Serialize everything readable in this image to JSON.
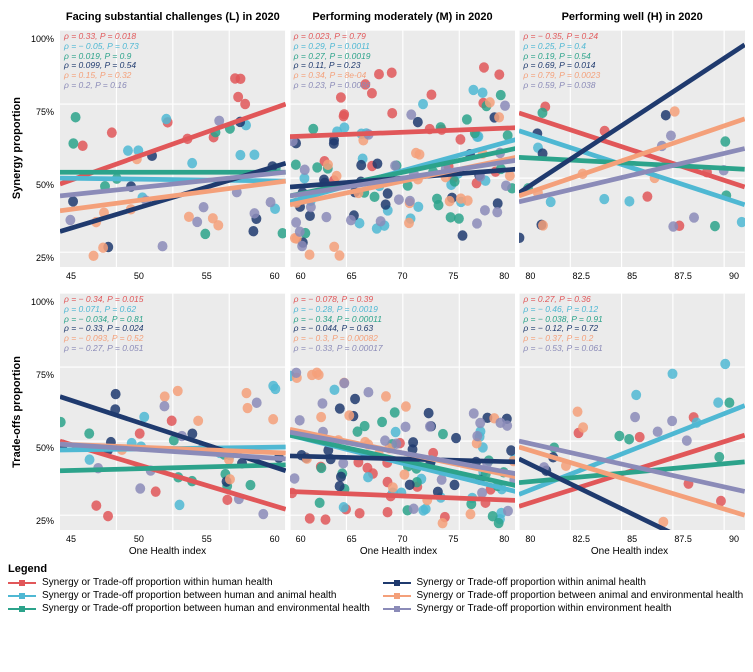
{
  "columns": [
    {
      "title": "Facing substantial challenges (L) in 2020",
      "xlim": [
        40,
        60
      ],
      "xticks": [
        45,
        50,
        55,
        60
      ]
    },
    {
      "title": "Performing moderately (M) in 2020",
      "xlim": [
        60,
        80
      ],
      "xticks": [
        60,
        65,
        70,
        75,
        80
      ]
    },
    {
      "title": "Performing well (H) in 2020",
      "xlim": [
        80,
        91
      ],
      "xticks": [
        80,
        82.5,
        85,
        87.5,
        90
      ]
    }
  ],
  "rows": [
    {
      "title": "Synergy proportion",
      "ylim": [
        20,
        100
      ],
      "yticks": [
        25,
        50,
        75,
        100
      ]
    },
    {
      "title": "Trade-offs proportion",
      "ylim": [
        20,
        100
      ],
      "yticks": [
        25,
        50,
        75,
        100
      ]
    }
  ],
  "xlabel": "One Health index",
  "series": [
    {
      "id": "hh",
      "color": "#e15759",
      "label": "Synergy or Trade-off proportion within human health"
    },
    {
      "id": "ha",
      "color": "#4fb8d3",
      "label": "Synergy or Trade-off  proportion between human and animal health"
    },
    {
      "id": "he",
      "color": "#2ca38b",
      "label": "Synergy or Trade-off  proportion between human and environmental health"
    },
    {
      "id": "aa",
      "color": "#1f3a6e",
      "label": "Synergy or Trade-off  proportion within animal health"
    },
    {
      "id": "ae",
      "color": "#f4a07a",
      "label": "Synergy or Trade-off  proportion between animal and environmental health"
    },
    {
      "id": "ee",
      "color": "#8b8bb8",
      "label": "Synergy or Trade-off  proportion within environment health"
    }
  ],
  "panels": [
    {
      "row": 0,
      "col": 0,
      "stats": [
        {
          "s": "hh",
          "text": "ρ = 0.33, P = 0.018"
        },
        {
          "s": "ha",
          "text": "ρ = − 0.05, P = 0.73"
        },
        {
          "s": "he",
          "text": "ρ = 0.019, P = 0.9"
        },
        {
          "s": "aa",
          "text": "ρ = 0.099, P = 0.54"
        },
        {
          "s": "ae",
          "text": "ρ = 0.15, P = 0.32"
        },
        {
          "s": "ee",
          "text": "ρ = 0.2, P = 0.16"
        }
      ],
      "lines": {
        "hh": [
          [
            40,
            48
          ],
          [
            60,
            75
          ]
        ],
        "ha": [
          [
            40,
            50
          ],
          [
            60,
            49
          ]
        ],
        "he": [
          [
            40,
            52
          ],
          [
            60,
            52
          ]
        ],
        "aa": [
          [
            40,
            32
          ],
          [
            60,
            55
          ]
        ],
        "ae": [
          [
            40,
            39
          ],
          [
            60,
            49
          ]
        ],
        "ee": [
          [
            40,
            44
          ],
          [
            60,
            52
          ]
        ]
      },
      "n": 38
    },
    {
      "row": 0,
      "col": 1,
      "stats": [
        {
          "s": "hh",
          "text": "ρ = 0.023, P = 0.79"
        },
        {
          "s": "ha",
          "text": "ρ = 0.29, P = 0.0011"
        },
        {
          "s": "he",
          "text": "ρ = 0.27, P = 0.0019"
        },
        {
          "s": "aa",
          "text": "ρ = 0.11, P = 0.23"
        },
        {
          "s": "ae",
          "text": "ρ = 0.34, P = 8e-04"
        },
        {
          "s": "ee",
          "text": "ρ = 0.23, P = 0.0086"
        }
      ],
      "lines": {
        "hh": [
          [
            60,
            64
          ],
          [
            80,
            67
          ]
        ],
        "ha": [
          [
            60,
            42
          ],
          [
            80,
            63
          ]
        ],
        "he": [
          [
            60,
            44
          ],
          [
            80,
            60
          ]
        ],
        "aa": [
          [
            60,
            47
          ],
          [
            80,
            53
          ]
        ],
        "ae": [
          [
            60,
            41
          ],
          [
            80,
            57
          ]
        ],
        "ee": [
          [
            60,
            44
          ],
          [
            80,
            56
          ]
        ]
      },
      "n": 90
    },
    {
      "row": 0,
      "col": 2,
      "stats": [
        {
          "s": "hh",
          "text": "ρ = − 0.35, P = 0.24"
        },
        {
          "s": "ha",
          "text": "ρ = 0.25, P = 0.4"
        },
        {
          "s": "he",
          "text": "ρ = 0.19, P = 0.54"
        },
        {
          "s": "aa",
          "text": "ρ = 0.69, P = 0.014"
        },
        {
          "s": "ae",
          "text": "ρ = 0.79, P = 0.0023"
        },
        {
          "s": "ee",
          "text": "ρ = 0.59, P = 0.038"
        }
      ],
      "lines": {
        "hh": [
          [
            80,
            72
          ],
          [
            91,
            47
          ]
        ],
        "ha": [
          [
            80,
            66
          ],
          [
            91,
            41
          ]
        ],
        "he": [
          [
            80,
            57
          ],
          [
            91,
            53
          ]
        ],
        "aa": [
          [
            80,
            45
          ],
          [
            91,
            95
          ]
        ],
        "ae": [
          [
            80,
            44
          ],
          [
            91,
            70
          ]
        ],
        "ee": [
          [
            80,
            42
          ],
          [
            91,
            60
          ]
        ]
      },
      "n": 13
    },
    {
      "row": 1,
      "col": 0,
      "stats": [
        {
          "s": "hh",
          "text": "ρ = − 0.34, P = 0.015"
        },
        {
          "s": "ha",
          "text": "ρ = 0.071, P = 0.62"
        },
        {
          "s": "he",
          "text": "ρ = − 0.034, P = 0.81"
        },
        {
          "s": "aa",
          "text": "ρ = − 0.33, P = 0.024"
        },
        {
          "s": "ae",
          "text": "ρ = − 0.093, P = 0.52"
        },
        {
          "s": "ee",
          "text": "ρ = − 0.27, P = 0.051"
        }
      ],
      "lines": {
        "hh": [
          [
            40,
            50
          ],
          [
            60,
            27
          ]
        ],
        "ha": [
          [
            40,
            47
          ],
          [
            60,
            48
          ]
        ],
        "he": [
          [
            40,
            40
          ],
          [
            60,
            42
          ]
        ],
        "aa": [
          [
            40,
            65
          ],
          [
            60,
            40
          ]
        ],
        "ae": [
          [
            40,
            49
          ],
          [
            60,
            46
          ]
        ],
        "ee": [
          [
            40,
            49
          ],
          [
            60,
            44
          ]
        ]
      },
      "n": 38
    },
    {
      "row": 1,
      "col": 1,
      "stats": [
        {
          "s": "hh",
          "text": "ρ = − 0.078, P = 0.39"
        },
        {
          "s": "ha",
          "text": "ρ = − 0.28, P = 0.0019"
        },
        {
          "s": "he",
          "text": "ρ = − 0.34, P = 0.00011"
        },
        {
          "s": "aa",
          "text": "ρ = − 0.044, P = 0.63"
        },
        {
          "s": "ae",
          "text": "ρ = − 0.3, P = 0.00082"
        },
        {
          "s": "ee",
          "text": "ρ = − 0.33, P = 0.00017"
        }
      ],
      "lines": {
        "hh": [
          [
            60,
            33
          ],
          [
            80,
            30
          ]
        ],
        "ha": [
          [
            60,
            52
          ],
          [
            80,
            33
          ]
        ],
        "he": [
          [
            60,
            52
          ],
          [
            80,
            35
          ]
        ],
        "aa": [
          [
            60,
            45
          ],
          [
            80,
            43
          ]
        ],
        "ae": [
          [
            60,
            54
          ],
          [
            80,
            38
          ]
        ],
        "ee": [
          [
            60,
            53
          ],
          [
            80,
            39
          ]
        ]
      },
      "n": 90
    },
    {
      "row": 1,
      "col": 2,
      "stats": [
        {
          "s": "hh",
          "text": "ρ = 0.27, P = 0.36"
        },
        {
          "s": "ha",
          "text": "ρ = − 0.46, P = 0.12"
        },
        {
          "s": "he",
          "text": "ρ = − 0.038, P = 0.91"
        },
        {
          "s": "aa",
          "text": "ρ = − 0.12, P = 0.72"
        },
        {
          "s": "ae",
          "text": "ρ = − 0.37, P = 0.2"
        },
        {
          "s": "ee",
          "text": "ρ = − 0.53, P = 0.061"
        }
      ],
      "lines": {
        "hh": [
          [
            80,
            28
          ],
          [
            91,
            52
          ]
        ],
        "ha": [
          [
            80,
            32
          ],
          [
            91,
            62
          ]
        ],
        "he": [
          [
            80,
            36
          ],
          [
            91,
            43
          ]
        ],
        "aa": [
          [
            80,
            44
          ],
          [
            91,
            7
          ]
        ],
        "ae": [
          [
            80,
            48
          ],
          [
            91,
            25
          ]
        ],
        "ee": [
          [
            80,
            50
          ],
          [
            91,
            33
          ]
        ]
      },
      "n": 13
    }
  ],
  "legend_title": "Legend",
  "background_color": "#ebebeb",
  "grid_color": "#ffffff",
  "point_radius": 2.2,
  "line_width": 2,
  "stat_fontsize": 8.5
}
